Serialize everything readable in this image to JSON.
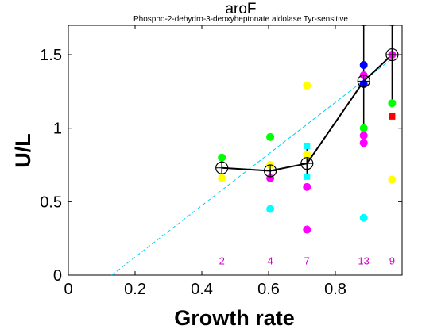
{
  "chart_data": {
    "type": "scatter",
    "title": "aroF",
    "subtitle": "Phospho-2-dehydro-3-deoxyheptonate aldolase  Tyr-sensitive",
    "xlabel": "Growth rate",
    "ylabel": "U/L",
    "xlim": [
      0,
      1.0
    ],
    "ylim": [
      0,
      1.7
    ],
    "xticks": [
      "0",
      "0.2",
      "0.4",
      "0.6",
      "0.8"
    ],
    "yticks": [
      "0",
      "0.5",
      "1",
      "1.5"
    ],
    "grid": false,
    "colors": {
      "yellow": "#ffff00",
      "green": "#00ff00",
      "magenta": "#ff00ff",
      "cyan": "#00ffff",
      "blue": "#0000ff",
      "red": "#ff0000",
      "black": "#000000",
      "fit": "#00ccff",
      "count": "#cc00cc"
    },
    "points": [
      {
        "x": 0.46,
        "y": 0.66,
        "color": "yellow"
      },
      {
        "x": 0.46,
        "y": 0.8,
        "color": "green"
      },
      {
        "x": 0.605,
        "y": 0.66,
        "color": "magenta"
      },
      {
        "x": 0.605,
        "y": 0.94,
        "color": "green"
      },
      {
        "x": 0.605,
        "y": 0.75,
        "color": "yellow"
      },
      {
        "x": 0.605,
        "y": 0.45,
        "color": "cyan"
      },
      {
        "x": 0.715,
        "y": 1.29,
        "color": "yellow"
      },
      {
        "x": 0.715,
        "y": 0.88,
        "color": "cyan",
        "shape": "square"
      },
      {
        "x": 0.715,
        "y": 0.82,
        "color": "yellow"
      },
      {
        "x": 0.715,
        "y": 0.67,
        "color": "cyan",
        "shape": "square"
      },
      {
        "x": 0.715,
        "y": 0.6,
        "color": "magenta"
      },
      {
        "x": 0.715,
        "y": 0.31,
        "color": "magenta"
      },
      {
        "x": 0.885,
        "y": 1.43,
        "color": "blue"
      },
      {
        "x": 0.885,
        "y": 1.36,
        "color": "magenta"
      },
      {
        "x": 0.885,
        "y": 1.3,
        "color": "blue"
      },
      {
        "x": 0.885,
        "y": 1.0,
        "color": "green"
      },
      {
        "x": 0.885,
        "y": 0.95,
        "color": "magenta"
      },
      {
        "x": 0.885,
        "y": 0.9,
        "color": "magenta"
      },
      {
        "x": 0.885,
        "y": 0.39,
        "color": "cyan"
      },
      {
        "x": 0.97,
        "y": 1.5,
        "color": "magenta"
      },
      {
        "x": 0.97,
        "y": 1.17,
        "color": "green"
      },
      {
        "x": 0.97,
        "y": 1.08,
        "color": "red",
        "shape": "square"
      },
      {
        "x": 0.97,
        "y": 0.65,
        "color": "yellow"
      }
    ],
    "mean_series": {
      "x": [
        0.46,
        0.605,
        0.715,
        0.885,
        0.97
      ],
      "y": [
        0.73,
        0.71,
        0.76,
        1.32,
        1.5
      ],
      "err_low": [
        0.65,
        0.67,
        0.66,
        1.0,
        1.17
      ],
      "err_high": [
        0.8,
        0.75,
        0.88,
        1.7,
        1.7
      ]
    },
    "fit_line": {
      "x": [
        0.13,
        0.985
      ],
      "y": [
        0.0,
        1.5
      ]
    },
    "counts": [
      {
        "x": 0.46,
        "label": "2"
      },
      {
        "x": 0.605,
        "label": "4"
      },
      {
        "x": 0.715,
        "label": "7"
      },
      {
        "x": 0.885,
        "label": "13"
      },
      {
        "x": 0.97,
        "label": "9"
      }
    ],
    "counts_y": 0.1
  }
}
